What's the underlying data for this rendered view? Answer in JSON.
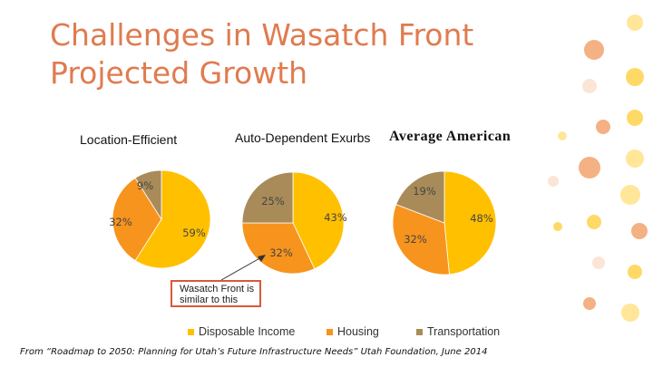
{
  "slide": {
    "title": "Challenges in Wasatch Front\nProjected Growth",
    "callout": "Wasatch Front is similar to this",
    "source": "From  “Roadmap to 2050: Planning for Utah’s Future Infrastructure Needs” Utah Foundation, June 2014"
  },
  "colors": {
    "disposable_income": "#FFC000",
    "housing": "#F7941D",
    "transportation": "#A88B59",
    "title": "#E07B4F",
    "callout_border": "#D9593A",
    "decor_dots": [
      "#FFD966",
      "#F4B183",
      "#FBE5D6",
      "#FFE699"
    ]
  },
  "chart_data": {
    "type": "pie",
    "categories": [
      "Disposable Income",
      "Housing",
      "Transportation"
    ],
    "legend_position": "bottom",
    "charts": [
      {
        "title": "Location-Efficient",
        "values": [
          59,
          32,
          9
        ],
        "labels": [
          "59%",
          "32%",
          "9%"
        ]
      },
      {
        "title": "Auto-Dependent Exurbs",
        "values": [
          43,
          32,
          25
        ],
        "labels": [
          "43%",
          "32%",
          "25%"
        ]
      },
      {
        "title": "Average American",
        "values": [
          48,
          32,
          19
        ],
        "labels": [
          "48%",
          "32%",
          "19%"
        ]
      }
    ]
  }
}
